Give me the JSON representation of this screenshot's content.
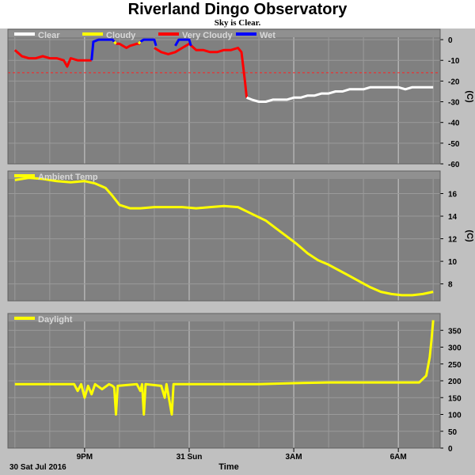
{
  "title": "Riverland Dingo Observatory",
  "subtitle": "Sky is Clear.",
  "colors": {
    "background": "#c0c0c0",
    "plot_area": "#808080",
    "grid_major": "#c8c8c8",
    "grid_minor": "#9a9a9a",
    "threshold": "#ff2020",
    "clear": "#ffffff",
    "cloudy": "#ffff00",
    "very_cloudy": "#ff0000",
    "wet": "#0000ff",
    "ambient": "#ffff00",
    "daylight": "#ffff00"
  },
  "x_axis": {
    "title": "Time",
    "start_label": "30 Sat Jul 2016",
    "ticks": [
      {
        "label": "9PM",
        "t": 21
      },
      {
        "label": "31 Sun",
        "t": 24
      },
      {
        "label": "3AM",
        "t": 27
      },
      {
        "label": "6AM",
        "t": 30
      }
    ],
    "range": [
      18.8,
      31.2
    ]
  },
  "chart_data": [
    {
      "type": "line",
      "panel": "sky",
      "ylabel": "(C)",
      "ylim": [
        -60,
        5
      ],
      "yticks": [
        0,
        -10,
        -20,
        -30,
        -40,
        -50,
        -60
      ],
      "threshold": -16,
      "legend": [
        "Clear",
        "Cloudy",
        "Very Cloudy",
        "Wet"
      ],
      "series": [
        {
          "name": "Very Cloudy",
          "color_key": "very_cloudy",
          "segments": [
            [
              [
                19.0,
                -5
              ],
              [
                19.2,
                -8
              ],
              [
                19.4,
                -9
              ],
              [
                19.6,
                -9
              ],
              [
                19.8,
                -8
              ],
              [
                20.0,
                -9
              ],
              [
                20.2,
                -9
              ],
              [
                20.4,
                -10
              ],
              [
                20.5,
                -13
              ],
              [
                20.6,
                -9
              ],
              [
                20.8,
                -10
              ],
              [
                21.0,
                -10
              ],
              [
                21.2,
                -10
              ]
            ],
            [
              [
                21.9,
                -2
              ],
              [
                22.0,
                -2
              ],
              [
                22.2,
                -4
              ],
              [
                22.3,
                -3
              ],
              [
                22.5,
                -2
              ],
              [
                22.6,
                -2
              ]
            ],
            [
              [
                23.0,
                -4
              ],
              [
                23.2,
                -6
              ],
              [
                23.4,
                -7
              ],
              [
                23.6,
                -6
              ],
              [
                23.8,
                -4
              ],
              [
                24.0,
                -2
              ],
              [
                24.2,
                -5
              ],
              [
                24.4,
                -5
              ],
              [
                24.6,
                -6
              ],
              [
                24.8,
                -6
              ],
              [
                25.0,
                -5
              ],
              [
                25.2,
                -5
              ],
              [
                25.4,
                -4
              ],
              [
                25.5,
                -6
              ],
              [
                25.55,
                -13
              ],
              [
                25.6,
                -20
              ],
              [
                25.65,
                -28
              ]
            ]
          ]
        },
        {
          "name": "Wet",
          "color_key": "wet",
          "segments": [
            [
              [
                21.2,
                -10
              ],
              [
                21.25,
                -1
              ],
              [
                21.4,
                0
              ],
              [
                21.6,
                0
              ],
              [
                21.8,
                0
              ],
              [
                21.85,
                -1
              ]
            ],
            [
              [
                22.6,
                -1
              ],
              [
                22.7,
                0
              ],
              [
                23.0,
                0
              ],
              [
                23.05,
                -3
              ]
            ],
            [
              [
                23.6,
                -3
              ],
              [
                23.7,
                0
              ],
              [
                24.0,
                0
              ],
              [
                24.05,
                -3
              ]
            ]
          ]
        },
        {
          "name": "Cloudy",
          "color_key": "cloudy",
          "segments": [
            [
              [
                21.85,
                -1
              ],
              [
                21.9,
                -2
              ]
            ],
            [
              [
                22.55,
                -2
              ],
              [
                22.6,
                -1
              ]
            ]
          ]
        },
        {
          "name": "Clear",
          "color_key": "clear",
          "segments": [
            [
              [
                25.65,
                -28
              ],
              [
                25.8,
                -29
              ],
              [
                26.0,
                -30
              ],
              [
                26.2,
                -30
              ],
              [
                26.4,
                -29
              ],
              [
                26.6,
                -29
              ],
              [
                26.8,
                -29
              ],
              [
                27.0,
                -28
              ],
              [
                27.2,
                -28
              ],
              [
                27.4,
                -27
              ],
              [
                27.6,
                -27
              ],
              [
                27.8,
                -26
              ],
              [
                28.0,
                -26
              ],
              [
                28.2,
                -25
              ],
              [
                28.4,
                -25
              ],
              [
                28.6,
                -24
              ],
              [
                28.8,
                -24
              ],
              [
                29.0,
                -24
              ],
              [
                29.2,
                -23
              ],
              [
                29.4,
                -23
              ],
              [
                29.6,
                -23
              ],
              [
                29.8,
                -23
              ],
              [
                30.0,
                -23
              ],
              [
                30.2,
                -24
              ],
              [
                30.4,
                -23
              ],
              [
                30.6,
                -23
              ],
              [
                30.8,
                -23
              ],
              [
                31.0,
                -23
              ]
            ]
          ]
        }
      ]
    },
    {
      "type": "line",
      "panel": "ambient",
      "ylabel": "(C)",
      "ylim": [
        6.5,
        18
      ],
      "yticks": [
        16,
        14,
        12,
        10,
        8
      ],
      "legend": [
        "Ambient Temp"
      ],
      "series": [
        {
          "name": "Ambient Temp",
          "color_key": "ambient",
          "segments": [
            [
              [
                19.0,
                17.2
              ],
              [
                19.4,
                17.4
              ],
              [
                19.8,
                17.3
              ],
              [
                20.2,
                17.1
              ],
              [
                20.6,
                17.0
              ],
              [
                21.0,
                17.1
              ],
              [
                21.3,
                16.9
              ],
              [
                21.6,
                16.5
              ],
              [
                21.8,
                15.8
              ],
              [
                22.0,
                15.0
              ],
              [
                22.3,
                14.7
              ],
              [
                22.6,
                14.7
              ],
              [
                23.0,
                14.8
              ],
              [
                23.4,
                14.8
              ],
              [
                23.8,
                14.8
              ],
              [
                24.2,
                14.7
              ],
              [
                24.6,
                14.8
              ],
              [
                25.0,
                14.9
              ],
              [
                25.4,
                14.8
              ],
              [
                25.8,
                14.2
              ],
              [
                26.2,
                13.6
              ],
              [
                26.5,
                12.9
              ],
              [
                26.8,
                12.2
              ],
              [
                27.1,
                11.5
              ],
              [
                27.4,
                10.7
              ],
              [
                27.7,
                10.1
              ],
              [
                28.0,
                9.7
              ],
              [
                28.3,
                9.2
              ],
              [
                28.6,
                8.7
              ],
              [
                28.9,
                8.2
              ],
              [
                29.2,
                7.7
              ],
              [
                29.5,
                7.3
              ],
              [
                29.8,
                7.1
              ],
              [
                30.1,
                7.0
              ],
              [
                30.4,
                7.0
              ],
              [
                30.7,
                7.1
              ],
              [
                31.0,
                7.3
              ]
            ]
          ]
        }
      ]
    },
    {
      "type": "line",
      "panel": "daylight",
      "ylabel": "",
      "ylim": [
        0,
        400
      ],
      "yticks": [
        350,
        300,
        250,
        200,
        150,
        100,
        50,
        0
      ],
      "legend": [
        "Daylight"
      ],
      "series": [
        {
          "name": "Daylight",
          "color_key": "daylight",
          "segments": [
            [
              [
                19.0,
                190
              ],
              [
                20.0,
                190
              ],
              [
                20.7,
                190
              ],
              [
                20.8,
                170
              ],
              [
                20.9,
                190
              ],
              [
                21.0,
                150
              ],
              [
                21.1,
                185
              ],
              [
                21.2,
                160
              ],
              [
                21.3,
                190
              ],
              [
                21.5,
                175
              ],
              [
                21.7,
                190
              ],
              [
                21.8,
                185
              ],
              [
                21.85,
                180
              ],
              [
                21.9,
                100
              ],
              [
                21.95,
                185
              ],
              [
                22.5,
                190
              ],
              [
                22.6,
                170
              ],
              [
                22.65,
                190
              ],
              [
                22.7,
                100
              ],
              [
                22.75,
                190
              ],
              [
                23.2,
                185
              ],
              [
                23.3,
                150
              ],
              [
                23.35,
                190
              ],
              [
                23.5,
                100
              ],
              [
                23.55,
                190
              ],
              [
                24.0,
                190
              ],
              [
                25.0,
                190
              ],
              [
                26.0,
                190
              ],
              [
                27.0,
                193
              ],
              [
                28.0,
                195
              ],
              [
                29.0,
                195
              ],
              [
                30.0,
                195
              ],
              [
                30.6,
                195
              ],
              [
                30.8,
                215
              ],
              [
                30.9,
                270
              ],
              [
                30.95,
                320
              ],
              [
                31.0,
                380
              ]
            ]
          ]
        }
      ]
    }
  ]
}
